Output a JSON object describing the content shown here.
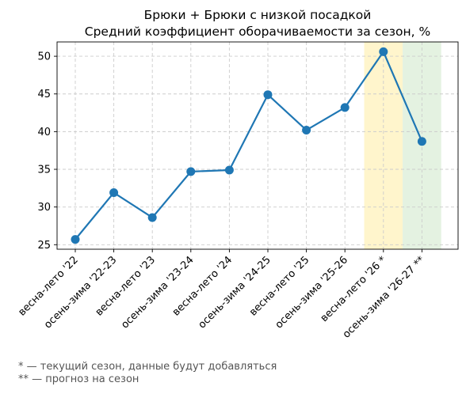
{
  "chart_data": {
    "type": "line",
    "title": "Брюки + Брюки с низкой посадкой",
    "subtitle": "Средний коэффициент оборачиваемости за сезон, %",
    "categories": [
      "весна-лето '22",
      "осень-зима '22-23",
      "весна-лето '23",
      "осень-зима '23-24",
      "весна-лето '24",
      "осень-зима '24-25",
      "весна-лето '25",
      "осень-зима '25-26",
      "весна-лето '26 *",
      "осень-зима '26-27 **"
    ],
    "series": [
      {
        "values": [
          25.7,
          31.9,
          28.6,
          34.7,
          34.9,
          44.9,
          40.2,
          43.2,
          50.6,
          38.7
        ],
        "color": "#1f77b4"
      }
    ],
    "ylim": [
      24.4,
      51.9
    ],
    "yticks": [
      25,
      30,
      35,
      40,
      45,
      50
    ],
    "grid": true,
    "highlights": [
      {
        "category": "весна-лето '26 *",
        "color": "#fff5cc"
      },
      {
        "category": "осень-зима '26-27 **",
        "color": "#e4f2e1"
      }
    ]
  },
  "footnotes": [
    "* — текущий сезон, данные будут добавляться",
    "** — прогноз на сезон"
  ]
}
